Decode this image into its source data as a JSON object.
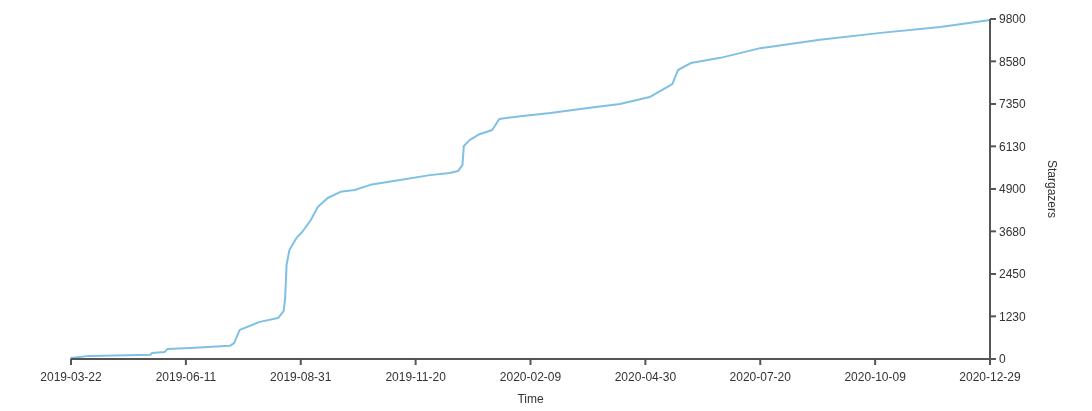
{
  "chart_data": {
    "type": "line",
    "xlabel": "Time",
    "ylabel": "Stargazers",
    "x": [
      "2019-03-22",
      "2019-04-04",
      "2019-05-17",
      "2019-05-18",
      "2019-05-27",
      "2019-05-29",
      "2019-06-14",
      "2019-07-12",
      "2019-07-15",
      "2019-07-19",
      "2019-08-02",
      "2019-08-15",
      "2019-08-19",
      "2019-08-20",
      "2019-08-21",
      "2019-08-23",
      "2019-08-28",
      "2019-09-01",
      "2019-09-07",
      "2019-09-12",
      "2019-09-19",
      "2019-09-28",
      "2019-10-08",
      "2019-10-19",
      "2019-11-09",
      "2019-11-30",
      "2019-12-14",
      "2019-12-20",
      "2019-12-23",
      "2019-12-24",
      "2019-12-28",
      "2020-01-04",
      "2020-01-13",
      "2020-01-18",
      "2020-02-02",
      "2020-02-23",
      "2020-03-22",
      "2020-04-12",
      "2020-05-03",
      "2020-05-19",
      "2020-05-23",
      "2020-06-01",
      "2020-06-22",
      "2020-07-20",
      "2020-08-31",
      "2020-10-13",
      "2020-11-24",
      "2020-12-29"
    ],
    "series": [
      {
        "color": "#7fc0e4",
        "values": [
          30,
          90,
          120,
          170,
          200,
          290,
          320,
          380,
          460,
          840,
          1070,
          1180,
          1390,
          1760,
          2710,
          3140,
          3490,
          3660,
          4000,
          4380,
          4640,
          4820,
          4870,
          5020,
          5160,
          5300,
          5360,
          5420,
          5590,
          6140,
          6310,
          6480,
          6600,
          6920,
          7000,
          7090,
          7240,
          7350,
          7550,
          7920,
          8330,
          8530,
          8680,
          8960,
          9200,
          9400,
          9570,
          9770
        ]
      }
    ],
    "xlim": [
      "2019-03-22",
      "2020-12-29"
    ],
    "xticks": [
      "2019-03-22",
      "2019-06-11",
      "2019-08-31",
      "2019-11-20",
      "2020-02-09",
      "2020-04-30",
      "2020-07-20",
      "2020-10-09",
      "2020-12-29"
    ],
    "ylim": [
      0,
      9800
    ],
    "yticks": [
      0,
      1230,
      2450,
      3680,
      4900,
      6130,
      7350,
      8580,
      9800
    ],
    "grid": false,
    "marker": "none",
    "line_style": "solid"
  }
}
